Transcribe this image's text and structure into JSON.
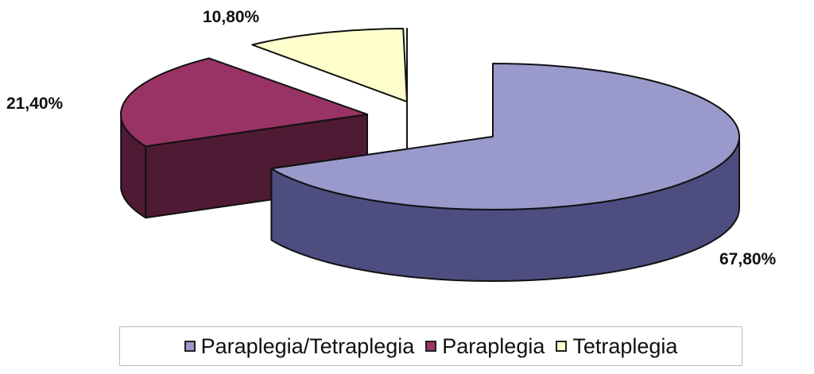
{
  "chart_data": {
    "type": "pie",
    "style": "3d-exploded",
    "legend_position": "bottom",
    "slices": [
      {
        "name": "Paraplegia/Tetraplegia",
        "value": 67.8,
        "label": "67,80%",
        "color": "#9999cc",
        "side_color": "#4d4d80"
      },
      {
        "name": "Paraplegia",
        "value": 21.4,
        "label": "21,40%",
        "color": "#993366",
        "side_color": "#4f1a33"
      },
      {
        "name": "Tetraplegia",
        "value": 10.8,
        "label": "10,80%",
        "color": "#ffffcc",
        "side_color": "#8c8c66"
      }
    ]
  }
}
